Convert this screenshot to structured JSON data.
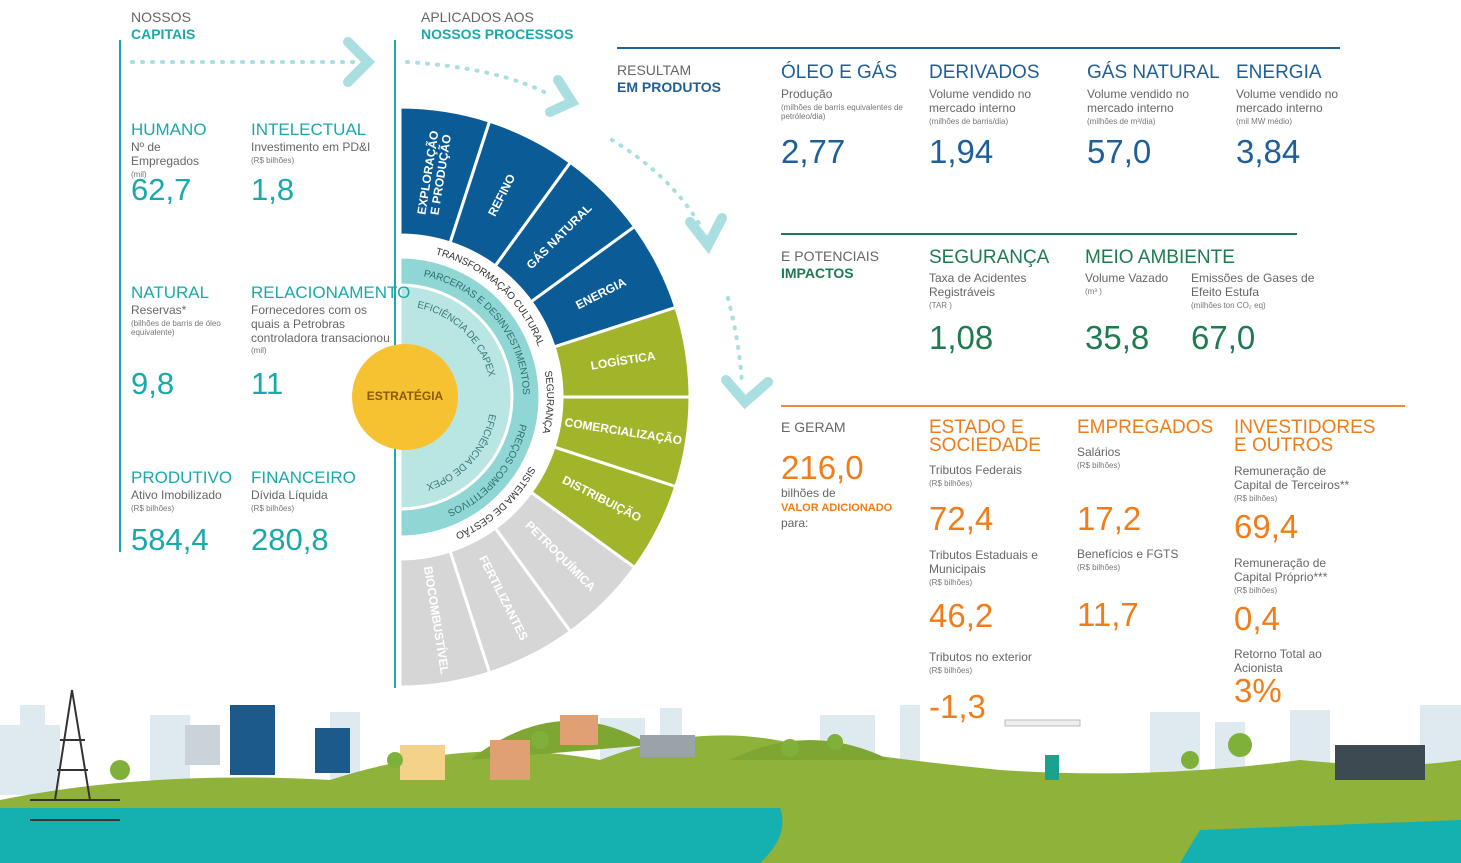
{
  "capitals": {
    "heading": [
      "NOSSOS",
      "CAPITAIS"
    ],
    "items": [
      {
        "title": "HUMANO",
        "description": "Nº de Empregados",
        "unit": "(mil)",
        "value": "62,7"
      },
      {
        "title": "INTELECTUAL",
        "description": "Investimento em PD&I",
        "unit": "(R$ bilhões)",
        "value": "1,8"
      },
      {
        "title": "NATURAL",
        "description": "Reservas*",
        "unit": "(bilhões de barris de óleo equivalente)",
        "value": "9,8"
      },
      {
        "title": "RELACIONAMENTO",
        "description": "Fornecedores com os quais a Petrobras controladora transacionou",
        "unit": "(mil)",
        "value": "11"
      },
      {
        "title": "PRODUTIVO",
        "description": "Ativo Imobilizado",
        "unit": "(R$ bilhões)",
        "value": "584,4"
      },
      {
        "title": "FINANCEIRO",
        "description": "Dívida Líquida",
        "unit": "(R$ bilhões)",
        "value": "280,8"
      }
    ]
  },
  "processes": {
    "heading": [
      "APLICADOS AOS",
      "NOSSOS PROCESSOS"
    ],
    "segments": [
      {
        "lines": [
          "EXPLORAÇÃO",
          "E PRODUÇÃO"
        ]
      },
      {
        "lines": [
          "REFINO"
        ]
      },
      {
        "lines": [
          "GÁS NATURAL"
        ]
      },
      {
        "lines": [
          "ENERGIA"
        ]
      },
      {
        "lines": [
          "LOGÍSTICA"
        ]
      },
      {
        "lines": [
          "COMERCIALIZAÇÃO"
        ]
      },
      {
        "lines": [
          "DISTRIBUIÇÃO"
        ]
      },
      {
        "lines": [
          "PETROQUÍMICA"
        ]
      },
      {
        "lines": [
          "FERTILIZANTES"
        ]
      },
      {
        "lines": [
          "BIOCOMBUSTÍVEL"
        ]
      }
    ],
    "rings": [
      [
        "TRANSFORMAÇÃO CULTURAL",
        "SEGURANÇA",
        "SISTEMA DE GESTÃO"
      ],
      [
        "PARCERIAS E DESINVESTIMENTOS",
        "PREÇOS COMPETITIVOS"
      ],
      [
        "EFICIÊNCIA DE CAPEX",
        "EFICIÊNCIA DE OPEX"
      ]
    ],
    "center": "ESTRATÉGIA"
  },
  "products": {
    "heading": [
      "RESULTAM",
      "EM PRODUTOS"
    ],
    "items": [
      {
        "title": "ÓLEO E GÁS",
        "description": "Produção",
        "unit": "(milhões de barris equivalentes de petróleo/dia)",
        "value": "2,77"
      },
      {
        "title": "DERIVADOS",
        "description": "Volume vendido no mercado interno",
        "unit": "(milhões de barris/dia)",
        "value": "1,94"
      },
      {
        "title": "GÁS NATURAL",
        "description": "Volume vendido no mercado interno",
        "unit": "(milhões de m³/dia)",
        "value": "57,0"
      },
      {
        "title": "ENERGIA",
        "description": "Volume vendido no mercado interno",
        "unit": "(mil MW médio)",
        "value": "3,84"
      }
    ]
  },
  "impacts": {
    "heading": [
      "E POTENCIAIS",
      "IMPACTOS"
    ],
    "groups": [
      {
        "title": "SEGURANÇA",
        "items": [
          {
            "description": "Taxa de Acidentes Registráveis",
            "unit": "(TAR )",
            "value": "1,08"
          }
        ]
      },
      {
        "title": "MEIO AMBIENTE",
        "items": [
          {
            "description": "Volume Vazado",
            "unit": "(m³ )",
            "value": "35,8"
          },
          {
            "description": "Emissões de Gases de Efeito Estufa",
            "unit": "(milhões ton CO₂ eq)",
            "value": "67,0"
          }
        ]
      }
    ]
  },
  "value_added": {
    "heading": "E GERAM",
    "total": "216,0",
    "total_text": [
      "bilhões de",
      "VALOR ADICIONADO",
      "para:"
    ],
    "groups": [
      {
        "title": "ESTADO E SOCIEDADE",
        "items": [
          {
            "description": "Tributos Federais",
            "unit": "(R$ bilhões)",
            "value": "72,4"
          },
          {
            "description": "Tributos Estaduais e Municipais",
            "unit": "(R$ bilhões)",
            "value": "46,2"
          },
          {
            "description": "Tributos no exterior",
            "unit": "(R$ bilhões)",
            "value": "-1,3"
          }
        ]
      },
      {
        "title": "EMPREGADOS",
        "items": [
          {
            "description": "Salários",
            "unit": "(R$ bilhões)",
            "value": "17,2"
          },
          {
            "description": "Benefícios e FGTS",
            "unit": "(R$ bilhões)",
            "value": "11,7"
          }
        ]
      },
      {
        "title": "INVESTIDORES E OUTROS",
        "items": [
          {
            "description": "Remuneração de Capital de Terceiros**",
            "unit": "(R$ bilhões)",
            "value": "69,4"
          },
          {
            "description": "Remuneração de Capital Próprio***",
            "unit": "(R$ bilhões)",
            "value": "0,4"
          },
          {
            "description": "Retorno Total ao Acionista",
            "value": "3%"
          }
        ]
      }
    ]
  }
}
